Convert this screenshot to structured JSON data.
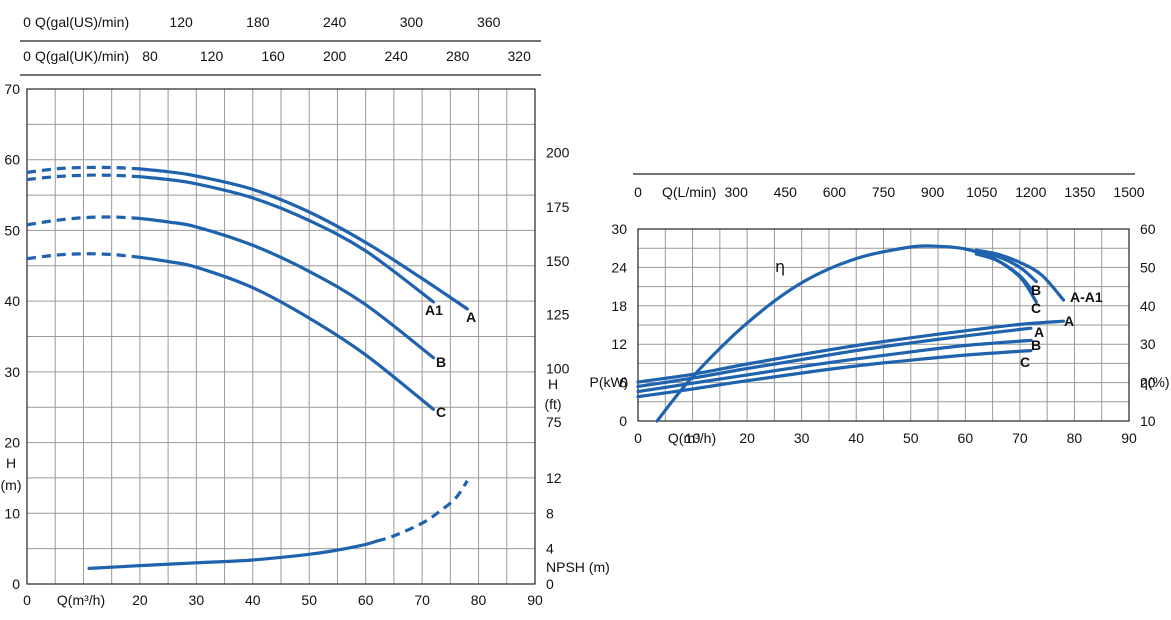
{
  "chart_data": [
    {
      "type": "line",
      "panel": "head-and-npsh",
      "x": {
        "label": "Q(m³/h)",
        "range": [
          0,
          90
        ],
        "ticks": [
          0,
          20,
          30,
          40,
          50,
          60,
          70,
          80,
          90
        ]
      },
      "top_axes": [
        {
          "label": "Q(gal(US)/min)",
          "zero": "0",
          "ticks": [
            {
              "label": "120",
              "x_m3h": 27.3
            },
            {
              "label": "180",
              "x_m3h": 40.9
            },
            {
              "label": "240",
              "x_m3h": 54.5
            },
            {
              "label": "300",
              "x_m3h": 68.1
            },
            {
              "label": "360",
              "x_m3h": 81.8
            }
          ]
        },
        {
          "label": "Q(gal(UK)/min)",
          "zero": "0",
          "ticks": [
            {
              "label": "80",
              "x_m3h": 21.8
            },
            {
              "label": "120",
              "x_m3h": 32.7
            },
            {
              "label": "160",
              "x_m3h": 43.6
            },
            {
              "label": "200",
              "x_m3h": 54.5
            },
            {
              "label": "240",
              "x_m3h": 65.4
            },
            {
              "label": "280",
              "x_m3h": 76.3
            },
            {
              "label": "320",
              "x_m3h": 87.2
            }
          ]
        }
      ],
      "y_left": {
        "label": [
          "H",
          "(m)"
        ],
        "range": [
          0,
          70
        ],
        "ticks": [
          0,
          10,
          20,
          30,
          40,
          50,
          60,
          70
        ]
      },
      "y_right_ft": {
        "label": [
          "H",
          "(ft)"
        ],
        "ticks": [
          {
            "label": "75",
            "y_m": 22.9
          },
          {
            "label": "100",
            "y_m": 30.5
          },
          {
            "label": "125",
            "y_m": 38.1
          },
          {
            "label": "150",
            "y_m": 45.7
          },
          {
            "label": "175",
            "y_m": 53.3
          },
          {
            "label": "200",
            "y_m": 61.0
          }
        ]
      },
      "y_right_npsh": {
        "label": "NPSH (m)",
        "range": [
          0,
          12
        ],
        "ticks": [
          {
            "label": "0",
            "y_m": 0
          },
          {
            "label": "4",
            "y_m": 5
          },
          {
            "label": "8",
            "y_m": 10
          },
          {
            "label": "12",
            "y_m": 15
          }
        ]
      },
      "grid": true,
      "series": [
        {
          "name": "A",
          "x": [
            0,
            5,
            10,
            15,
            20,
            25,
            30,
            40,
            50,
            60,
            70,
            78
          ],
          "y": [
            58.2,
            58.7,
            58.9,
            58.9,
            58.7,
            58.3,
            57.7,
            55.8,
            52.6,
            48.3,
            43.2,
            38.9
          ],
          "dashed_until_x": 20
        },
        {
          "name": "A1",
          "x": [
            0,
            5,
            10,
            15,
            20,
            25,
            30,
            40,
            50,
            60,
            72
          ],
          "y": [
            57.2,
            57.6,
            57.8,
            57.8,
            57.6,
            57.2,
            56.6,
            54.6,
            51.4,
            47.1,
            39.9
          ],
          "dashed_until_x": 20
        },
        {
          "name": "B",
          "x": [
            0,
            5,
            10,
            15,
            20,
            25,
            30,
            40,
            50,
            60,
            72
          ],
          "y": [
            50.8,
            51.4,
            51.8,
            51.9,
            51.7,
            51.2,
            50.5,
            47.9,
            44.2,
            39.5,
            32.0
          ],
          "dashed_until_x": 20
        },
        {
          "name": "C",
          "x": [
            0,
            5,
            10,
            15,
            20,
            25,
            30,
            40,
            50,
            60,
            72
          ],
          "y": [
            46.0,
            46.5,
            46.7,
            46.6,
            46.2,
            45.6,
            44.8,
            41.9,
            37.6,
            32.4,
            24.7
          ],
          "dashed_until_x": 20
        },
        {
          "name": "NPSH",
          "x": [
            11,
            20,
            30,
            40,
            50,
            55,
            60,
            65,
            70,
            73,
            76,
            78
          ],
          "y": [
            2.2,
            2.6,
            3.0,
            3.4,
            4.2,
            4.8,
            5.6,
            6.8,
            8.6,
            10.2,
            12.2,
            14.6
          ],
          "dashed_from_x": 62
        }
      ],
      "curve_labels": [
        "A1",
        "A",
        "B",
        "C"
      ]
    },
    {
      "type": "line",
      "panel": "power-and-efficiency",
      "x": {
        "label": "Q(m³/h)",
        "range": [
          0,
          90
        ],
        "ticks": [
          0,
          10,
          20,
          30,
          40,
          50,
          60,
          70,
          80,
          90
        ]
      },
      "top_axis": {
        "label": "Q(L/min)",
        "zero": "0",
        "ticks": [
          {
            "label": "300",
            "x_m3h": 18
          },
          {
            "label": "450",
            "x_m3h": 27
          },
          {
            "label": "600",
            "x_m3h": 36
          },
          {
            "label": "750",
            "x_m3h": 45
          },
          {
            "label": "900",
            "x_m3h": 54
          },
          {
            "label": "1050",
            "x_m3h": 63
          },
          {
            "label": "1200",
            "x_m3h": 72
          },
          {
            "label": "1350",
            "x_m3h": 81
          },
          {
            "label": "1500",
            "x_m3h": 90
          }
        ]
      },
      "y_left": {
        "label": "P(kW)",
        "range": [
          0,
          30
        ],
        "ticks": [
          0,
          6,
          12,
          18,
          24,
          30
        ]
      },
      "y_right": {
        "label": "η(%)",
        "range": [
          10,
          60
        ],
        "ticks": [
          10,
          20,
          30,
          40,
          50,
          60
        ]
      },
      "grid": true,
      "efficiency_series": [
        {
          "name": "η",
          "x": [
            3.5,
            10,
            20,
            30,
            40,
            50,
            55,
            60,
            65,
            70,
            73
          ],
          "y": [
            10,
            21.5,
            35.5,
            46.0,
            52.3,
            55.3,
            55.5,
            54.8,
            52.5,
            47.5,
            41.0
          ]
        },
        {
          "name": "C",
          "x": [
            62,
            66,
            70,
            72
          ],
          "y": [
            53.5,
            51.7,
            47.8,
            44.4
          ]
        },
        {
          "name": "B",
          "x": [
            62,
            66,
            70,
            73
          ],
          "y": [
            54.2,
            52.8,
            50.0,
            46.3
          ]
        },
        {
          "name": "A-A1",
          "x": [
            62,
            66,
            70,
            74,
            78
          ],
          "y": [
            54.5,
            53.4,
            51.3,
            48.0,
            41.5
          ]
        }
      ],
      "power_series": [
        {
          "name": "A",
          "x": [
            0,
            10,
            20,
            30,
            40,
            50,
            60,
            70,
            78
          ],
          "y": [
            6.1,
            7.3,
            8.9,
            10.4,
            11.8,
            13.0,
            14.1,
            15.1,
            15.6
          ]
        },
        {
          "name": "A1",
          "x": [
            0,
            10,
            20,
            30,
            40,
            50,
            60,
            72
          ],
          "y": [
            5.4,
            6.7,
            8.2,
            9.6,
            11.0,
            12.2,
            13.3,
            14.5
          ]
        },
        {
          "name": "B",
          "x": [
            0,
            10,
            20,
            30,
            40,
            50,
            60,
            72
          ],
          "y": [
            4.6,
            5.9,
            7.2,
            8.5,
            9.7,
            10.8,
            11.8,
            12.6
          ]
        },
        {
          "name": "C",
          "x": [
            0,
            10,
            20,
            30,
            40,
            50,
            60,
            72
          ],
          "y": [
            3.8,
            5.0,
            6.3,
            7.5,
            8.6,
            9.5,
            10.3,
            11.0
          ]
        }
      ],
      "curve_labels": [
        "η",
        "B",
        "C",
        "A-A1",
        "A",
        "A",
        "B",
        "C"
      ]
    }
  ]
}
